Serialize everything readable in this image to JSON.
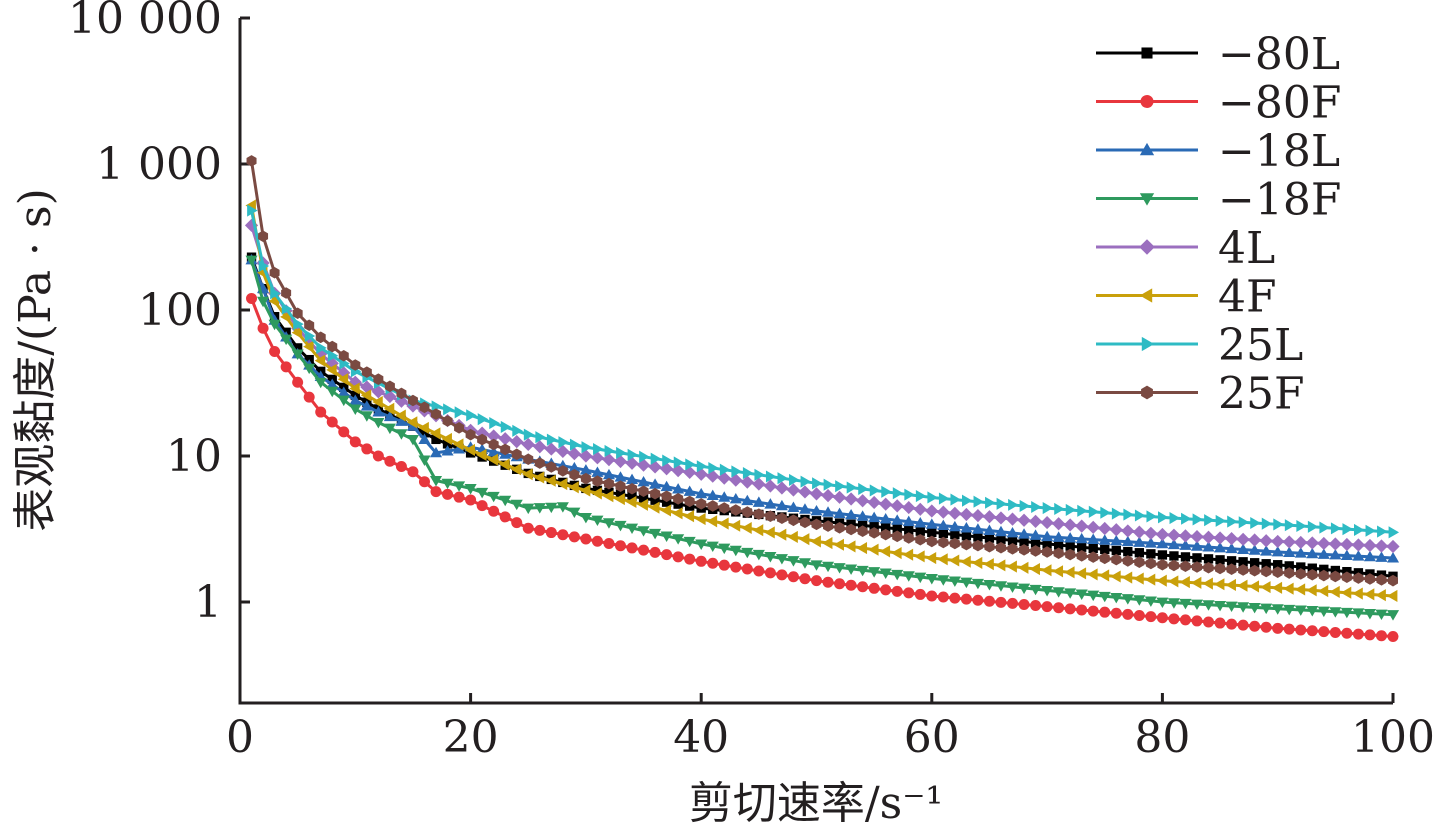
{
  "chart_data": {
    "type": "line",
    "xlabel": "剪切速率/s⁻¹",
    "ylabel": "表观黏度/(Pa · s)",
    "xlim": [
      0,
      100
    ],
    "ylim": [
      0.3,
      10000
    ],
    "yscale": "log",
    "grid": false,
    "legend_position": "top-right",
    "x_ticks": [
      "0",
      "20",
      "40",
      "60",
      "80",
      "100"
    ],
    "y_ticks": [
      "1",
      "10",
      "100",
      "1 000",
      "10 000"
    ],
    "series": [
      {
        "name": "−80L",
        "color": "#000000",
        "marker": "square",
        "x": [
          1,
          2,
          3,
          5,
          7,
          10,
          12,
          15,
          17,
          20,
          25,
          30,
          40,
          50,
          60,
          70,
          80,
          90,
          100
        ],
        "y": [
          230,
          140,
          90,
          55,
          38,
          26,
          21,
          16,
          13,
          10.5,
          7.6,
          6.0,
          4.4,
          3.6,
          3.0,
          2.5,
          2.1,
          1.8,
          1.5
        ]
      },
      {
        "name": "−80F",
        "color": "#e8363d",
        "marker": "circle",
        "x": [
          1,
          2,
          3,
          5,
          7,
          10,
          12,
          15,
          17,
          20,
          25,
          30,
          40,
          50,
          60,
          70,
          80,
          90,
          100
        ],
        "y": [
          120,
          75,
          52,
          32,
          20,
          12.5,
          10,
          7.8,
          5.7,
          5.0,
          3.2,
          2.7,
          1.9,
          1.4,
          1.1,
          0.93,
          0.78,
          0.66,
          0.58
        ]
      },
      {
        "name": "−18L",
        "color": "#2a6ab5",
        "marker": "triangle-up",
        "x": [
          1,
          2,
          3,
          5,
          7,
          10,
          12,
          15,
          17,
          18,
          20,
          25,
          30,
          40,
          50,
          60,
          70,
          80,
          90,
          100
        ],
        "y": [
          220,
          140,
          85,
          50,
          35,
          24,
          20,
          16,
          10.5,
          10.8,
          11.5,
          9.5,
          8.0,
          5.5,
          4.2,
          3.4,
          2.8,
          2.5,
          2.2,
          2.0
        ]
      },
      {
        "name": "−18F",
        "color": "#2e9a5e",
        "marker": "triangle-down",
        "x": [
          1,
          2,
          3,
          5,
          7,
          10,
          12,
          15,
          17,
          20,
          25,
          28,
          30,
          40,
          50,
          60,
          70,
          80,
          90,
          100
        ],
        "y": [
          220,
          115,
          80,
          50,
          32,
          21,
          17,
          13,
          6.8,
          6.0,
          4.4,
          4.5,
          3.8,
          2.5,
          1.8,
          1.45,
          1.2,
          1.0,
          0.9,
          0.82
        ]
      },
      {
        "name": "4L",
        "color": "#9b6fbf",
        "marker": "diamond",
        "x": [
          1,
          2,
          3,
          5,
          7,
          10,
          15,
          20,
          25,
          30,
          40,
          50,
          60,
          70,
          80,
          90,
          100
        ],
        "y": [
          380,
          210,
          130,
          75,
          50,
          32,
          22,
          15,
          12,
          10,
          7.5,
          5.5,
          4.2,
          3.5,
          2.9,
          2.6,
          2.4
        ]
      },
      {
        "name": "4F",
        "color": "#c9a00a",
        "marker": "triangle-left",
        "x": [
          1,
          2,
          3,
          5,
          7,
          10,
          15,
          20,
          25,
          30,
          40,
          50,
          60,
          70,
          80,
          90,
          100
        ],
        "y": [
          520,
          180,
          115,
          70,
          45,
          29,
          17,
          11,
          7.5,
          5.8,
          3.7,
          2.6,
          2.0,
          1.65,
          1.4,
          1.25,
          1.1
        ]
      },
      {
        "name": "25L",
        "color": "#2ebbc4",
        "marker": "triangle-right",
        "x": [
          1,
          2,
          3,
          5,
          7,
          10,
          15,
          20,
          25,
          30,
          40,
          50,
          60,
          70,
          80,
          90,
          100
        ],
        "y": [
          480,
          200,
          130,
          80,
          55,
          38,
          24,
          19,
          14,
          11.5,
          8.5,
          6.5,
          5.2,
          4.4,
          3.8,
          3.4,
          3.0
        ]
      },
      {
        "name": "25F",
        "color": "#7a4a42",
        "marker": "hexagon",
        "x": [
          1,
          2,
          3,
          5,
          7,
          10,
          15,
          20,
          25,
          30,
          40,
          50,
          60,
          70,
          80,
          90,
          100
        ],
        "y": [
          1050,
          320,
          180,
          95,
          65,
          42,
          24,
          14,
          9.5,
          7.0,
          4.7,
          3.4,
          2.6,
          2.2,
          1.8,
          1.6,
          1.4
        ]
      }
    ]
  }
}
